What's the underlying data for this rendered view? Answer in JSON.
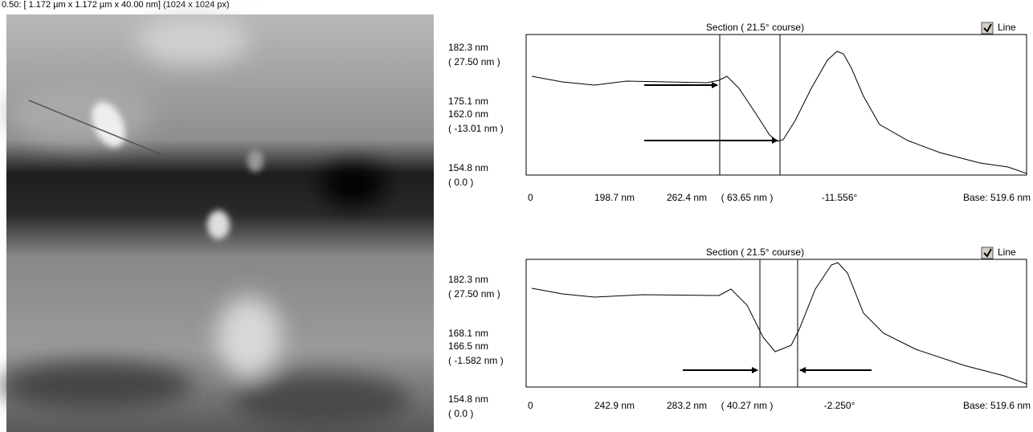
{
  "header": {
    "title": "0.50: [ 1.172 µm x 1.172 µm x 40.00 nm] (1024 x 1024 px)"
  },
  "panels": [
    {
      "title": "Section ( 21.5° course)",
      "checkbox": "Line",
      "y_labels": [
        "182.3 nm",
        "( 27.50 nm )",
        "175.1 nm",
        "162.0 nm",
        "( -13.01 nm )",
        "154.8 nm",
        "( 0.0 )"
      ],
      "x_labels": [
        "0",
        "198.7 nm",
        "262.4 nm",
        "( 63.65 nm )",
        "-11.556°",
        "Base:  519.6 nm"
      ]
    },
    {
      "title": "Section ( 21.5° course)",
      "checkbox": "Line",
      "y_labels": [
        "182.3 nm",
        "( 27.50 nm )",
        "168.1 nm",
        "166.5 nm",
        "( -1.582 nm )",
        "154.8 nm",
        "( 0.0 )"
      ],
      "x_labels": [
        "0",
        "242.9 nm",
        "283.2 nm",
        "( 40.27 nm )",
        "-2.250°",
        "Base:  519.6 nm"
      ]
    }
  ]
}
